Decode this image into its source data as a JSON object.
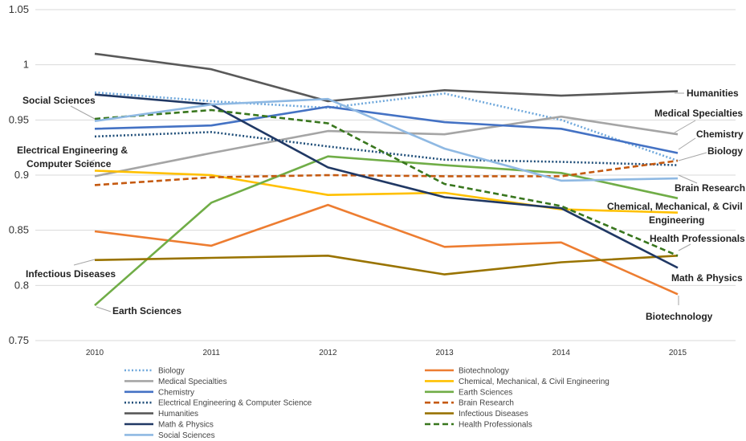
{
  "chart_data": {
    "type": "line",
    "x": [
      "2010",
      "2011",
      "2012",
      "2013",
      "2014",
      "2015"
    ],
    "ylim": [
      0.75,
      1.05
    ],
    "yticks": [
      "0.75",
      "0.8",
      "0.85",
      "0.9",
      "0.95",
      "1",
      "1.05"
    ],
    "grid": true,
    "legend_position": "bottom",
    "series": [
      {
        "name": "Biology",
        "color": "#6fa8dc",
        "dash": "dotted",
        "values": [
          0.975,
          0.967,
          0.961,
          0.974,
          0.95,
          0.913
        ]
      },
      {
        "name": "Biotechnology",
        "color": "#ed7d31",
        "dash": "solid",
        "values": [
          0.849,
          0.836,
          0.873,
          0.835,
          0.839,
          0.792
        ]
      },
      {
        "name": "Medical Specialties",
        "color": "#a5a5a5",
        "dash": "solid",
        "values": [
          0.899,
          0.92,
          0.94,
          0.937,
          0.953,
          0.937
        ]
      },
      {
        "name": "Chemical, Mechanical, & Civil Engineering",
        "color": "#ffc000",
        "dash": "solid",
        "values": [
          0.904,
          0.9,
          0.882,
          0.884,
          0.869,
          0.866
        ]
      },
      {
        "name": "Chemistry",
        "color": "#4472c4",
        "dash": "solid",
        "values": [
          0.942,
          0.945,
          0.962,
          0.948,
          0.942,
          0.92
        ]
      },
      {
        "name": "Earth Sciences",
        "color": "#70ad47",
        "dash": "solid",
        "values": [
          0.782,
          0.875,
          0.917,
          0.909,
          0.902,
          0.879
        ]
      },
      {
        "name": "Electrical Engineering & Computer Science",
        "color": "#1f4e79",
        "dash": "dotted",
        "values": [
          0.935,
          0.939,
          0.926,
          0.914,
          0.912,
          0.909
        ]
      },
      {
        "name": "Brain Research",
        "color": "#c55a11",
        "dash": "dashed",
        "values": [
          0.891,
          0.898,
          0.9,
          0.899,
          0.899,
          0.913
        ]
      },
      {
        "name": "Humanities",
        "color": "#595959",
        "dash": "solid",
        "values": [
          1.01,
          0.996,
          0.967,
          0.977,
          0.972,
          0.976
        ]
      },
      {
        "name": "Infectious Diseases",
        "color": "#997300",
        "dash": "solid",
        "values": [
          0.823,
          0.825,
          0.827,
          0.81,
          0.821,
          0.827
        ]
      },
      {
        "name": "Math & Physics",
        "color": "#203864",
        "dash": "solid",
        "values": [
          0.973,
          0.964,
          0.907,
          0.88,
          0.87,
          0.816
        ]
      },
      {
        "name": "Health Professionals",
        "color": "#38761d",
        "dash": "dashed",
        "values": [
          0.951,
          0.959,
          0.947,
          0.892,
          0.872,
          0.827
        ]
      },
      {
        "name": "Social Sciences",
        "color": "#8fb9e3",
        "dash": "solid",
        "values": [
          0.949,
          0.964,
          0.969,
          0.924,
          0.895,
          0.897
        ]
      }
    ],
    "annotations": [
      {
        "text": "Humanities",
        "series": "Humanities"
      },
      {
        "text": "Medical Specialties",
        "series": "Medical Specialties"
      },
      {
        "text": "Chemistry",
        "series": "Chemistry"
      },
      {
        "text": "Biology",
        "series": "Biology"
      },
      {
        "text": "Brain Research",
        "series": "Brain Research"
      },
      {
        "text": "Chemical, Mechanical, & Civil",
        "series": "Chemical, Mechanical, & Civil Engineering"
      },
      {
        "text": "Engineering",
        "series": "Chemical, Mechanical, & Civil Engineering"
      },
      {
        "text": "Health Professionals",
        "series": "Health Professionals"
      },
      {
        "text": "Math & Physics",
        "series": "Math & Physics"
      },
      {
        "text": "Biotechnology",
        "series": "Biotechnology"
      },
      {
        "text": "Social Sciences",
        "series": "Social Sciences"
      },
      {
        "text": "Electrical Engineering &",
        "series": "Electrical Engineering & Computer Science"
      },
      {
        "text": "Computer Science",
        "series": "Electrical Engineering & Computer Science"
      },
      {
        "text": "Infectious Diseases",
        "series": "Infectious Diseases"
      },
      {
        "text": "Earth Sciences",
        "series": "Earth Sciences"
      }
    ]
  }
}
